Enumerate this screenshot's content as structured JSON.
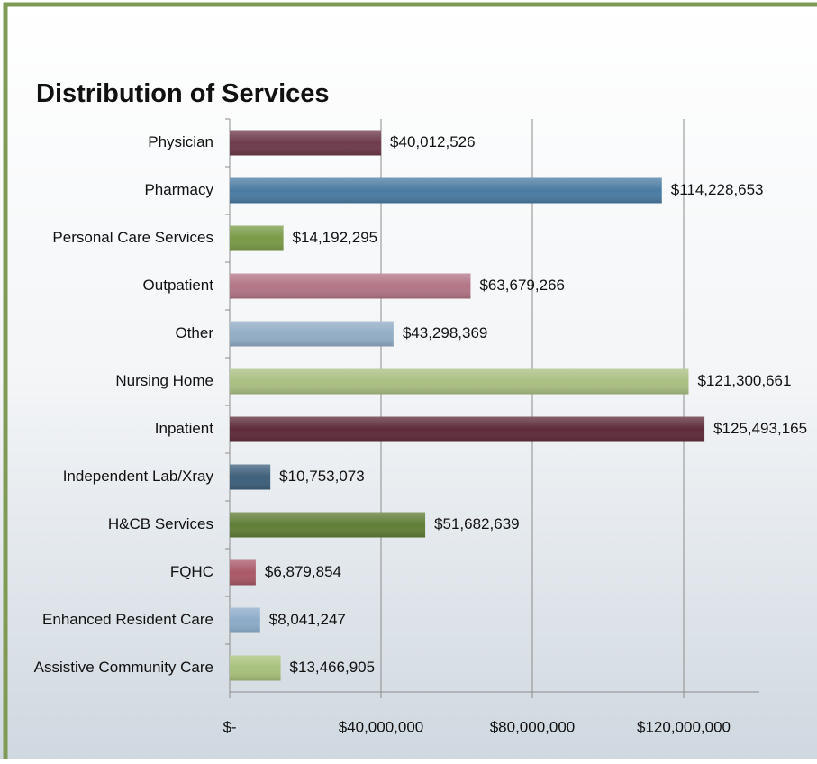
{
  "chart_data": {
    "type": "barh",
    "title": "Distribution of Services",
    "categories": [
      "Physician",
      "Pharmacy",
      "Personal Care Services",
      "Outpatient",
      "Other",
      "Nursing Home",
      "Inpatient",
      "Independent Lab/Xray",
      "H&CB Services",
      "FQHC",
      "Enhanced Resident Care",
      "Assistive Community Care"
    ],
    "values": [
      40012526,
      114228653,
      14192295,
      63679266,
      43298369,
      121300661,
      125493165,
      10753073,
      51682639,
      6879854,
      8041247,
      13466905
    ],
    "value_labels": [
      "$40,012,526",
      "$114,228,653",
      "$14,192,295",
      "$63,679,266",
      "$43,298,369",
      "$121,300,661",
      "$125,493,165",
      "$10,753,073",
      "$51,682,639",
      "$6,879,854",
      "$8,041,247",
      "$13,466,905"
    ],
    "colors": [
      "#6e3b4b",
      "#4b7ba2",
      "#7a9b47",
      "#b27586",
      "#92adc6",
      "#aabf82",
      "#5e2b3a",
      "#3e607b",
      "#607e36",
      "#aa5868",
      "#8cabc9",
      "#a8c17b"
    ],
    "xlim": [
      0,
      140000000
    ],
    "xticks": [
      {
        "value": 0,
        "label": "$-"
      },
      {
        "value": 40000000,
        "label": "$40,000,000"
      },
      {
        "value": 80000000,
        "label": "$80,000,000"
      },
      {
        "value": 120000000,
        "label": "$120,000,000"
      }
    ],
    "grid": true
  }
}
